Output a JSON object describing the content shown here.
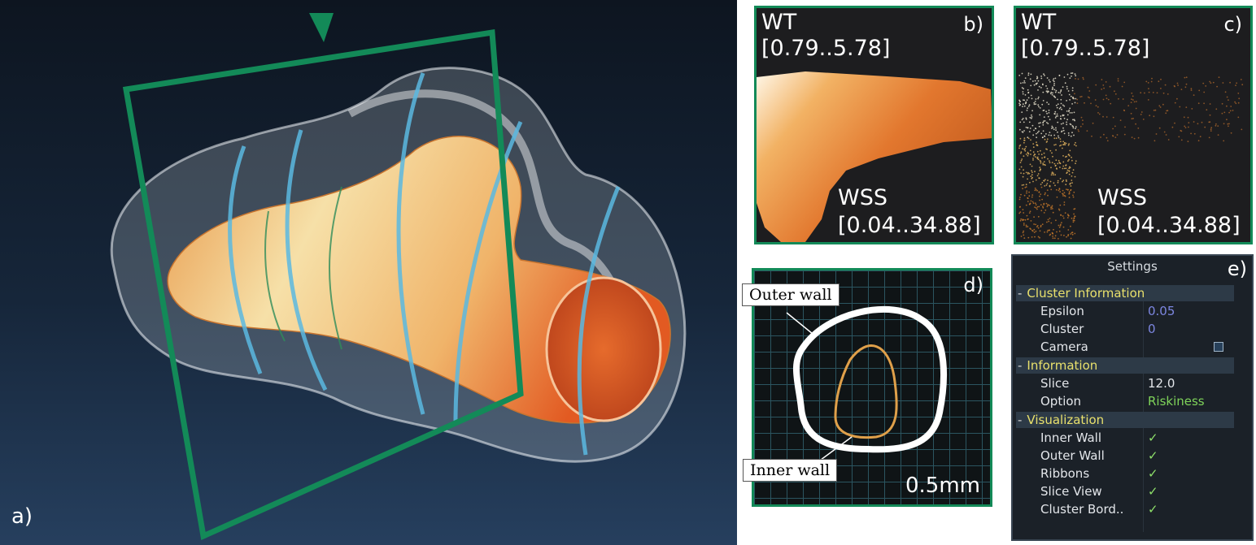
{
  "panel_a": {
    "label": "a)"
  },
  "panel_b": {
    "label": "b)",
    "y_name": "WT",
    "y_range": "[0.79..5.78]",
    "x_name": "WSS",
    "x_range": "[0.04..34.88]"
  },
  "panel_c": {
    "label": "c)",
    "y_name": "WT",
    "y_range": "[0.79..5.78]",
    "x_name": "WSS",
    "x_range": "[0.04..34.88]"
  },
  "panel_d": {
    "label": "d)",
    "outer_wall_label": "Outer wall",
    "inner_wall_label": "Inner wall",
    "scale_label": "0.5mm"
  },
  "settings": {
    "label": "e)",
    "title": "Settings",
    "sections": [
      {
        "name": "Cluster Information",
        "rows": [
          {
            "label": "Epsilon",
            "value": "0.05"
          },
          {
            "label": "Cluster",
            "value": "0"
          },
          {
            "label": "Camera",
            "checked": false
          }
        ]
      },
      {
        "name": "Information",
        "rows": [
          {
            "label": "Slice",
            "value": "12.0"
          },
          {
            "label": "Option",
            "value": "Riskiness"
          }
        ]
      },
      {
        "name": "Visualization",
        "rows": [
          {
            "label": "Inner Wall",
            "checked": true
          },
          {
            "label": "Outer Wall",
            "checked": true
          },
          {
            "label": "Ribbons",
            "checked": true
          },
          {
            "label": "Slice View",
            "checked": true
          },
          {
            "label": "Cluster Bord..",
            "checked": true
          }
        ]
      }
    ]
  },
  "colors": {
    "frame_green": "#138a58",
    "vessel_orange": "#e2662a",
    "vessel_light": "#f3d79a",
    "ribbon_blue": "#5bb8e0"
  }
}
